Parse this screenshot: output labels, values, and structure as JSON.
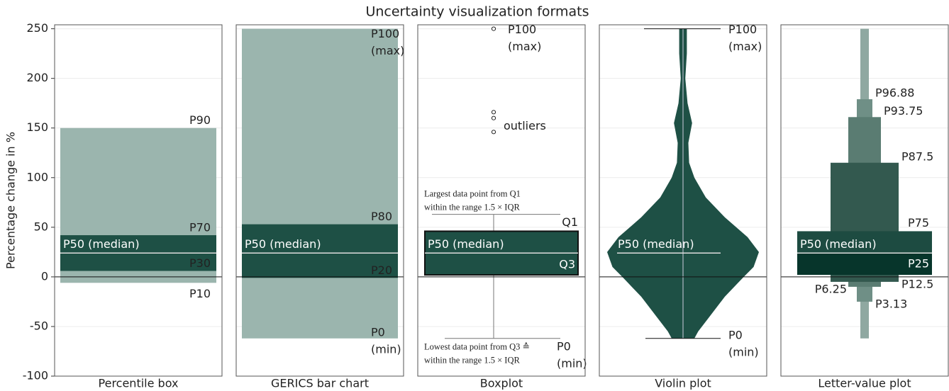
{
  "title": "Uncertainty visualization formats",
  "ylabel": "Percentage change in %",
  "ylim": [
    -100,
    254
  ],
  "yticks": [
    -100,
    -50,
    0,
    50,
    100,
    150,
    200,
    250
  ],
  "grid": true,
  "chart_data": [
    {
      "type": "percentile_box",
      "xlabel": "Percentile box",
      "bands": [
        {
          "lower": -6,
          "upper": 150,
          "lower_label": "P10",
          "upper_label": "P90",
          "color": "#9bb5ae"
        },
        {
          "lower": 6,
          "upper": 42,
          "lower_label": "P30",
          "upper_label": "P70",
          "color": "#1e5045"
        }
      ],
      "median": 24,
      "median_label": "P50 (median)"
    },
    {
      "type": "percentile_box",
      "xlabel": "GERICS bar chart",
      "bands": [
        {
          "lower": -62,
          "upper": 250,
          "lower_label": [
            "P0",
            "(min)"
          ],
          "upper_label": [
            "P100",
            "(max)"
          ],
          "color": "#9bb5ae"
        },
        {
          "lower": -1,
          "upper": 53,
          "lower_label": "P20",
          "upper_label": "P80",
          "color": "#1e5045"
        }
      ],
      "median": 24,
      "median_label": "P50 (median)"
    },
    {
      "type": "boxplot",
      "xlabel": "Boxplot",
      "color": "#1e5045",
      "box_upper": 46,
      "box_lower": 2,
      "upper_label": "Q1",
      "lower_label": "Q3",
      "median": 24,
      "median_label": "P50 (median)",
      "whisker_high": 63,
      "whisker_low": -62,
      "whisker_high_note": [
        "Largest data point from Q1",
        "within the range 1.5 × IQR"
      ],
      "whisker_low_note": [
        "Lowest data point from Q3 ≙",
        "within the range 1.5 × IQR"
      ],
      "min_label": [
        "P0",
        "(min)"
      ],
      "outliers": [
        250,
        166,
        160,
        146
      ],
      "max_label": [
        "P100",
        "(max)"
      ],
      "outlier_label": "outliers"
    },
    {
      "type": "violin",
      "xlabel": "Violin plot",
      "color": "#1e5045",
      "y": [
        250,
        225,
        200,
        175,
        155,
        135,
        115,
        100,
        80,
        60,
        40,
        25,
        10,
        0,
        -20,
        -40,
        -55,
        -62
      ],
      "density": [
        0.05,
        0.05,
        0.03,
        0.06,
        0.12,
        0.07,
        0.08,
        0.15,
        0.3,
        0.55,
        0.85,
        1.0,
        0.93,
        0.8,
        0.55,
        0.35,
        0.2,
        0.15
      ],
      "max": 250,
      "min": -62,
      "median": 24,
      "max_label": [
        "P100",
        "(max)"
      ],
      "min_label": [
        "P0",
        "(min)"
      ],
      "median_label": "P50 (median)"
    },
    {
      "type": "letter_value",
      "xlabel": "Letter-value plot",
      "boxes": [
        {
          "lower": -62,
          "upper": 250,
          "color": "#8fa8a1"
        },
        {
          "lower": -25,
          "upper": 179,
          "lower_label": "P3.13",
          "upper_label": "P96.88",
          "color": "#6f8f86"
        },
        {
          "lower": -10,
          "upper": 161,
          "lower_label": "P6.25",
          "upper_label": "P93.75",
          "color": "#5a7c72"
        },
        {
          "lower": -5,
          "upper": 115,
          "lower_label": "P12.5",
          "upper_label": "P87.5",
          "color": "#33594f"
        },
        {
          "lower": 2,
          "upper": 46,
          "lower_label": "P25",
          "upper_label": "P75",
          "color": "#1d4b41",
          "lower_color": "#07352b"
        }
      ],
      "median": 24,
      "median_label": "P50 (median)"
    }
  ]
}
